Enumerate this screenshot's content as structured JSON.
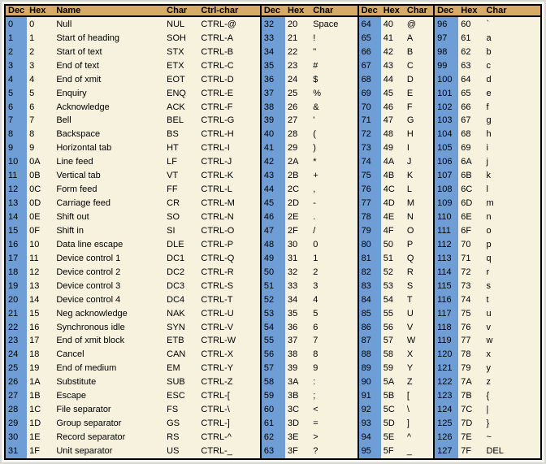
{
  "colors": {
    "header_bg": "#d8aa68",
    "dec_col_bg": "#6f9ed6",
    "cell_bg": "#f7f2de",
    "border": "#000000"
  },
  "sections": [
    {
      "headers": [
        "Dec",
        "Hex",
        "Name",
        "Char",
        "Ctrl-char"
      ],
      "rows": [
        [
          "0",
          "0",
          "Null",
          "NUL",
          "CTRL-@"
        ],
        [
          "1",
          "1",
          "Start of heading",
          "SOH",
          "CTRL-A"
        ],
        [
          "2",
          "2",
          "Start of text",
          "STX",
          "CTRL-B"
        ],
        [
          "3",
          "3",
          "End of text",
          "ETX",
          "CTRL-C"
        ],
        [
          "4",
          "4",
          "End of xmit",
          "EOT",
          "CTRL-D"
        ],
        [
          "5",
          "5",
          "Enquiry",
          "ENQ",
          "CTRL-E"
        ],
        [
          "6",
          "6",
          "Acknowledge",
          "ACK",
          "CTRL-F"
        ],
        [
          "7",
          "7",
          "Bell",
          "BEL",
          "CTRL-G"
        ],
        [
          "8",
          "8",
          "Backspace",
          "BS",
          "CTRL-H"
        ],
        [
          "9",
          "9",
          "Horizontal tab",
          "HT",
          "CTRL-I"
        ],
        [
          "10",
          "0A",
          "Line feed",
          "LF",
          "CTRL-J"
        ],
        [
          "11",
          "0B",
          "Vertical tab",
          "VT",
          "CTRL-K"
        ],
        [
          "12",
          "0C",
          "Form feed",
          "FF",
          "CTRL-L"
        ],
        [
          "13",
          "0D",
          "Carriage feed",
          "CR",
          "CTRL-M"
        ],
        [
          "14",
          "0E",
          "Shift out",
          "SO",
          "CTRL-N"
        ],
        [
          "15",
          "0F",
          "Shift in",
          "SI",
          "CTRL-O"
        ],
        [
          "16",
          "10",
          "Data line escape",
          "DLE",
          "CTRL-P"
        ],
        [
          "17",
          "11",
          "Device control 1",
          "DC1",
          "CTRL-Q"
        ],
        [
          "18",
          "12",
          "Device control 2",
          "DC2",
          "CTRL-R"
        ],
        [
          "19",
          "13",
          "Device control 3",
          "DC3",
          "CTRL-S"
        ],
        [
          "20",
          "14",
          "Device control 4",
          "DC4",
          "CTRL-T"
        ],
        [
          "21",
          "15",
          "Neg acknowledge",
          "NAK",
          "CTRL-U"
        ],
        [
          "22",
          "16",
          "Synchronous idle",
          "SYN",
          "CTRL-V"
        ],
        [
          "23",
          "17",
          "End of xmit block",
          "ETB",
          "CTRL-W"
        ],
        [
          "24",
          "18",
          "Cancel",
          "CAN",
          "CTRL-X"
        ],
        [
          "25",
          "19",
          "End of medium",
          "EM",
          "CTRL-Y"
        ],
        [
          "26",
          "1A",
          "Substitute",
          "SUB",
          "CTRL-Z"
        ],
        [
          "27",
          "1B",
          "Escape",
          "ESC",
          "CTRL-["
        ],
        [
          "28",
          "1C",
          "File separator",
          "FS",
          "CTRL-\\"
        ],
        [
          "29",
          "1D",
          "Group separator",
          "GS",
          "CTRL-]"
        ],
        [
          "30",
          "1E",
          "Record separator",
          "RS",
          "CTRL-^"
        ],
        [
          "31",
          "1F",
          "Unit separator",
          "US",
          "CTRL-_"
        ]
      ]
    },
    {
      "headers": [
        "Dec",
        "Hex",
        "Char"
      ],
      "rows": [
        [
          "32",
          "20",
          "Space"
        ],
        [
          "33",
          "21",
          "!"
        ],
        [
          "34",
          "22",
          "\""
        ],
        [
          "35",
          "23",
          "#"
        ],
        [
          "36",
          "24",
          "$"
        ],
        [
          "37",
          "25",
          "%"
        ],
        [
          "38",
          "26",
          "&"
        ],
        [
          "39",
          "27",
          "'"
        ],
        [
          "40",
          "28",
          "("
        ],
        [
          "41",
          "29",
          ")"
        ],
        [
          "42",
          "2A",
          "*"
        ],
        [
          "43",
          "2B",
          "+"
        ],
        [
          "44",
          "2C",
          ","
        ],
        [
          "45",
          "2D",
          "-"
        ],
        [
          "46",
          "2E",
          "."
        ],
        [
          "47",
          "2F",
          "/"
        ],
        [
          "48",
          "30",
          "0"
        ],
        [
          "49",
          "31",
          "1"
        ],
        [
          "50",
          "32",
          "2"
        ],
        [
          "51",
          "33",
          "3"
        ],
        [
          "52",
          "34",
          "4"
        ],
        [
          "53",
          "35",
          "5"
        ],
        [
          "54",
          "36",
          "6"
        ],
        [
          "55",
          "37",
          "7"
        ],
        [
          "56",
          "38",
          "8"
        ],
        [
          "57",
          "39",
          "9"
        ],
        [
          "58",
          "3A",
          ":"
        ],
        [
          "59",
          "3B",
          ";"
        ],
        [
          "60",
          "3C",
          "<"
        ],
        [
          "61",
          "3D",
          "="
        ],
        [
          "62",
          "3E",
          ">"
        ],
        [
          "63",
          "3F",
          "?"
        ]
      ]
    },
    {
      "headers": [
        "Dec",
        "Hex",
        "Char"
      ],
      "rows": [
        [
          "64",
          "40",
          "@"
        ],
        [
          "65",
          "41",
          "A"
        ],
        [
          "66",
          "42",
          "B"
        ],
        [
          "67",
          "43",
          "C"
        ],
        [
          "68",
          "44",
          "D"
        ],
        [
          "69",
          "45",
          "E"
        ],
        [
          "70",
          "46",
          "F"
        ],
        [
          "71",
          "47",
          "G"
        ],
        [
          "72",
          "48",
          "H"
        ],
        [
          "73",
          "49",
          "I"
        ],
        [
          "74",
          "4A",
          "J"
        ],
        [
          "75",
          "4B",
          "K"
        ],
        [
          "76",
          "4C",
          "L"
        ],
        [
          "77",
          "4D",
          "M"
        ],
        [
          "78",
          "4E",
          "N"
        ],
        [
          "79",
          "4F",
          "O"
        ],
        [
          "80",
          "50",
          "P"
        ],
        [
          "81",
          "51",
          "Q"
        ],
        [
          "82",
          "52",
          "R"
        ],
        [
          "83",
          "53",
          "S"
        ],
        [
          "84",
          "54",
          "T"
        ],
        [
          "85",
          "55",
          "U"
        ],
        [
          "86",
          "56",
          "V"
        ],
        [
          "87",
          "57",
          "W"
        ],
        [
          "88",
          "58",
          "X"
        ],
        [
          "89",
          "59",
          "Y"
        ],
        [
          "90",
          "5A",
          "Z"
        ],
        [
          "91",
          "5B",
          "["
        ],
        [
          "92",
          "5C",
          "\\"
        ],
        [
          "93",
          "5D",
          "]"
        ],
        [
          "94",
          "5E",
          "^"
        ],
        [
          "95",
          "5F",
          "_"
        ]
      ]
    },
    {
      "headers": [
        "Dec",
        "Hex",
        "Char"
      ],
      "rows": [
        [
          "96",
          "60",
          "`"
        ],
        [
          "97",
          "61",
          "a"
        ],
        [
          "98",
          "62",
          "b"
        ],
        [
          "99",
          "63",
          "c"
        ],
        [
          "100",
          "64",
          "d"
        ],
        [
          "101",
          "65",
          "e"
        ],
        [
          "102",
          "66",
          "f"
        ],
        [
          "103",
          "67",
          "g"
        ],
        [
          "104",
          "68",
          "h"
        ],
        [
          "105",
          "69",
          "i"
        ],
        [
          "106",
          "6A",
          "j"
        ],
        [
          "107",
          "6B",
          "k"
        ],
        [
          "108",
          "6C",
          "l"
        ],
        [
          "109",
          "6D",
          "m"
        ],
        [
          "110",
          "6E",
          "n"
        ],
        [
          "111",
          "6F",
          "o"
        ],
        [
          "112",
          "70",
          "p"
        ],
        [
          "113",
          "71",
          "q"
        ],
        [
          "114",
          "72",
          "r"
        ],
        [
          "115",
          "73",
          "s"
        ],
        [
          "116",
          "74",
          "t"
        ],
        [
          "117",
          "75",
          "u"
        ],
        [
          "118",
          "76",
          "v"
        ],
        [
          "119",
          "77",
          "w"
        ],
        [
          "120",
          "78",
          "x"
        ],
        [
          "121",
          "79",
          "y"
        ],
        [
          "122",
          "7A",
          "z"
        ],
        [
          "123",
          "7B",
          "{"
        ],
        [
          "124",
          "7C",
          "|"
        ],
        [
          "125",
          "7D",
          "}"
        ],
        [
          "126",
          "7E",
          "~"
        ],
        [
          "127",
          "7F",
          "DEL"
        ]
      ]
    }
  ]
}
